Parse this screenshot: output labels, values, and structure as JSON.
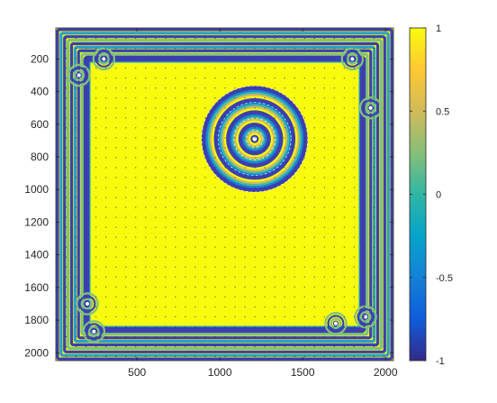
{
  "chart_data": {
    "type": "heatmap",
    "title": "",
    "xlabel": "",
    "ylabel": "",
    "xlim": [
      10,
      2048
    ],
    "ylim": [
      10,
      2048
    ],
    "y_reversed": true,
    "x_ticks": [
      "500",
      "1000",
      "1500",
      "2000"
    ],
    "x_tick_values": [
      500,
      1000,
      1500,
      2000
    ],
    "y_ticks": [
      "200",
      "400",
      "600",
      "800",
      "1000",
      "1200",
      "1400",
      "1600",
      "1800",
      "2000"
    ],
    "y_tick_values": [
      200,
      400,
      600,
      800,
      1000,
      1200,
      1400,
      1600,
      1800,
      2000
    ],
    "colorbar": {
      "ticks": [
        "1",
        "0.5",
        "0",
        "-0.5",
        "-1"
      ],
      "tick_values": [
        1,
        0.5,
        0,
        -0.5,
        -1
      ],
      "clim": [
        -1,
        1
      ],
      "colormap": "parula",
      "colors": [
        "#352a87",
        "#0f5cdd",
        "#1481d6",
        "#06a4ca",
        "#2eb7a4",
        "#87bf77",
        "#d1bb59",
        "#fec832",
        "#f9fb0e"
      ]
    },
    "field": {
      "background_value": 1,
      "background_color": "#f9fb0e",
      "edge_color": "#3d3fb0",
      "boundary_band": {
        "x_range": [
          10,
          2048
        ],
        "y_range": [
          10,
          2048
        ],
        "depth": 190
      },
      "target_pattern": {
        "center_x": 1210,
        "center_y": 690,
        "outer_radius": 320,
        "ring_radii": [
          320,
          220,
          125,
          50
        ]
      },
      "defects": [
        {
          "x": 300,
          "y": 200
        },
        {
          "x": 1800,
          "y": 200
        },
        {
          "x": 1910,
          "y": 500
        },
        {
          "x": 200,
          "y": 1700
        },
        {
          "x": 1700,
          "y": 1820
        },
        {
          "x": 1880,
          "y": 1780
        },
        {
          "x": 150,
          "y": 300
        },
        {
          "x": 240,
          "y": 1870
        }
      ]
    }
  }
}
